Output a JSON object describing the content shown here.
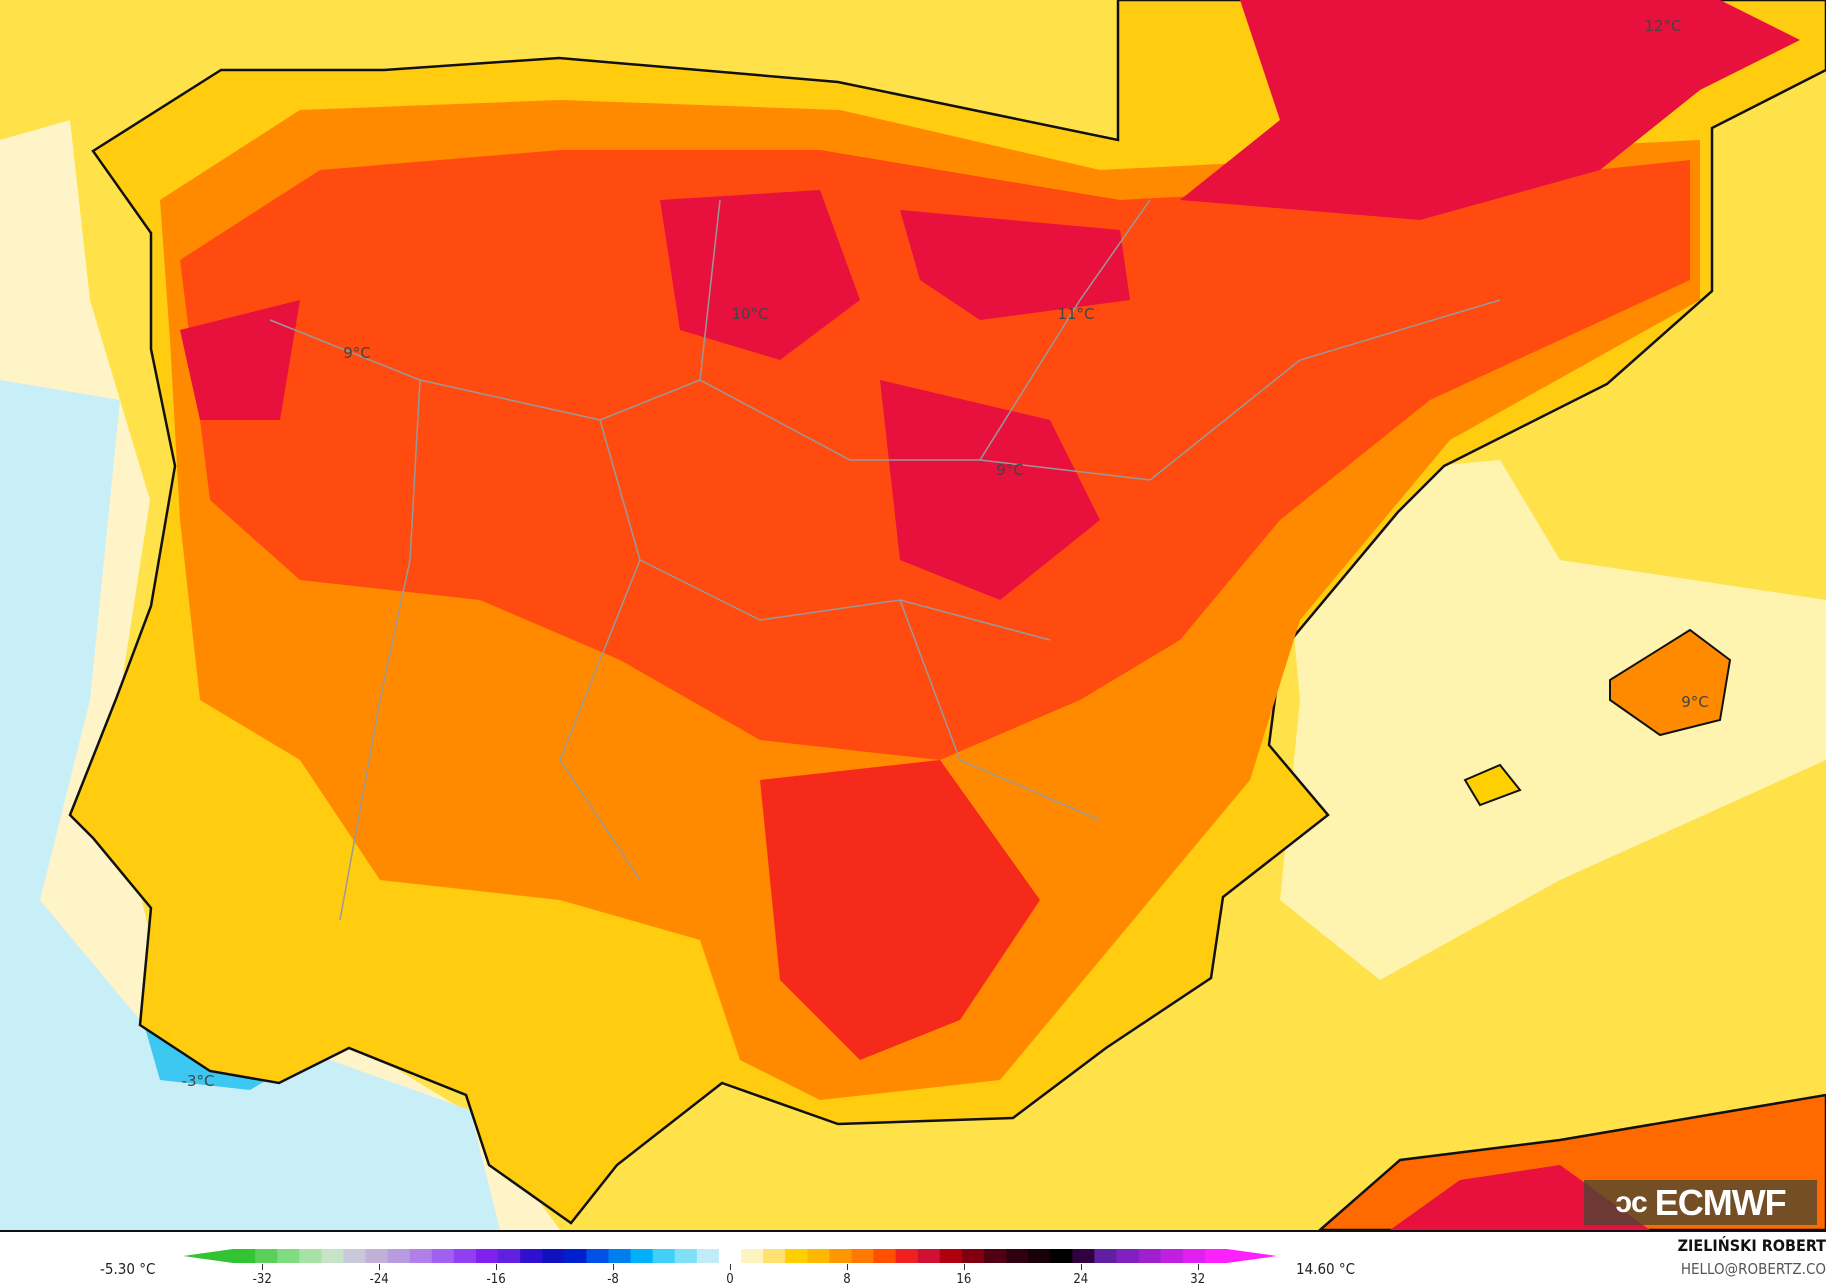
{
  "map_labels": [
    "12°C",
    "10°C",
    "11°C",
    "9°C",
    "9°C",
    "9°C",
    "-3°C"
  ],
  "logo": "ECMWF",
  "colorbar": {
    "min_label": "-5.30 °C",
    "max_label": "14.60 °C",
    "ticks": [
      "-32",
      "-24",
      "-16",
      "-8",
      "0",
      "8",
      "16",
      "24",
      "32"
    ],
    "range": [
      -34,
      34
    ],
    "colors": [
      "#33c433",
      "#5ad05a",
      "#7fdc7f",
      "#a6e2a6",
      "#c8e4c8",
      "#c8c8d8",
      "#c0b0d8",
      "#b89ce0",
      "#b080e8",
      "#a060f0",
      "#9040f0",
      "#8020f0",
      "#6020e0",
      "#3010d0",
      "#1010c0",
      "#0020d0",
      "#0050e8",
      "#0080f0",
      "#00b0f8",
      "#40d0f8",
      "#80e0f8",
      "#c0ecf8",
      "#ffffff",
      "#fff4c0",
      "#ffe070",
      "#ffd000",
      "#ffb800",
      "#ff9800",
      "#ff7800",
      "#ff5000",
      "#f02020",
      "#d01030",
      "#b00010",
      "#800010",
      "#500010",
      "#300010",
      "#180008",
      "#000000",
      "#300040",
      "#6020a0",
      "#8020c0",
      "#a020d0",
      "#c020e0",
      "#e020f0",
      "#ff20ff"
    ]
  },
  "credits": {
    "author": "ZIELIŃSKI ROBERT",
    "email": "HELLO@ROBERTZ.CO"
  }
}
